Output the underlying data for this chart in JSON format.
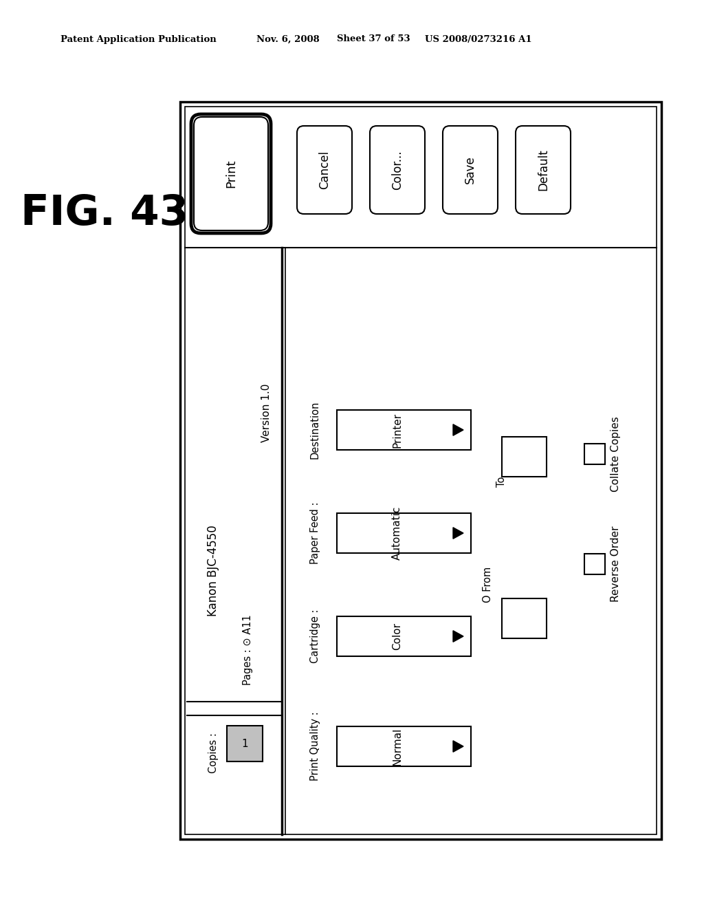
{
  "bg_color": "#ffffff",
  "header_line1": "Patent Application Publication",
  "header_date": "Nov. 6, 2008",
  "header_sheet": "Sheet 37 of 53",
  "header_patent": "US 2008/0273216 A1",
  "fig_label": "FIG. 43",
  "dialog_title_left": "Kanon BJC-4550",
  "dialog_title_right": "Version 1.0",
  "copies_label": "Copies :",
  "copies_value": "1",
  "pages_label": "Pages : ⊙ A11",
  "from_label": "O From",
  "to_label": "To",
  "rows": [
    {
      "label": "Print Quality :",
      "value": "Normal"
    },
    {
      "label": "Cartridge :",
      "value": "Color"
    },
    {
      "label": "Paper Feed :",
      "value": "Automatic"
    },
    {
      "label": "Destination",
      "value": "Printer"
    }
  ],
  "checkboxes": [
    {
      "label": "Reverse Order"
    },
    {
      "label": "Collate Copies"
    }
  ],
  "print_button": "Print",
  "side_buttons": [
    "Cancel",
    "Color...",
    "Save",
    "Default"
  ]
}
